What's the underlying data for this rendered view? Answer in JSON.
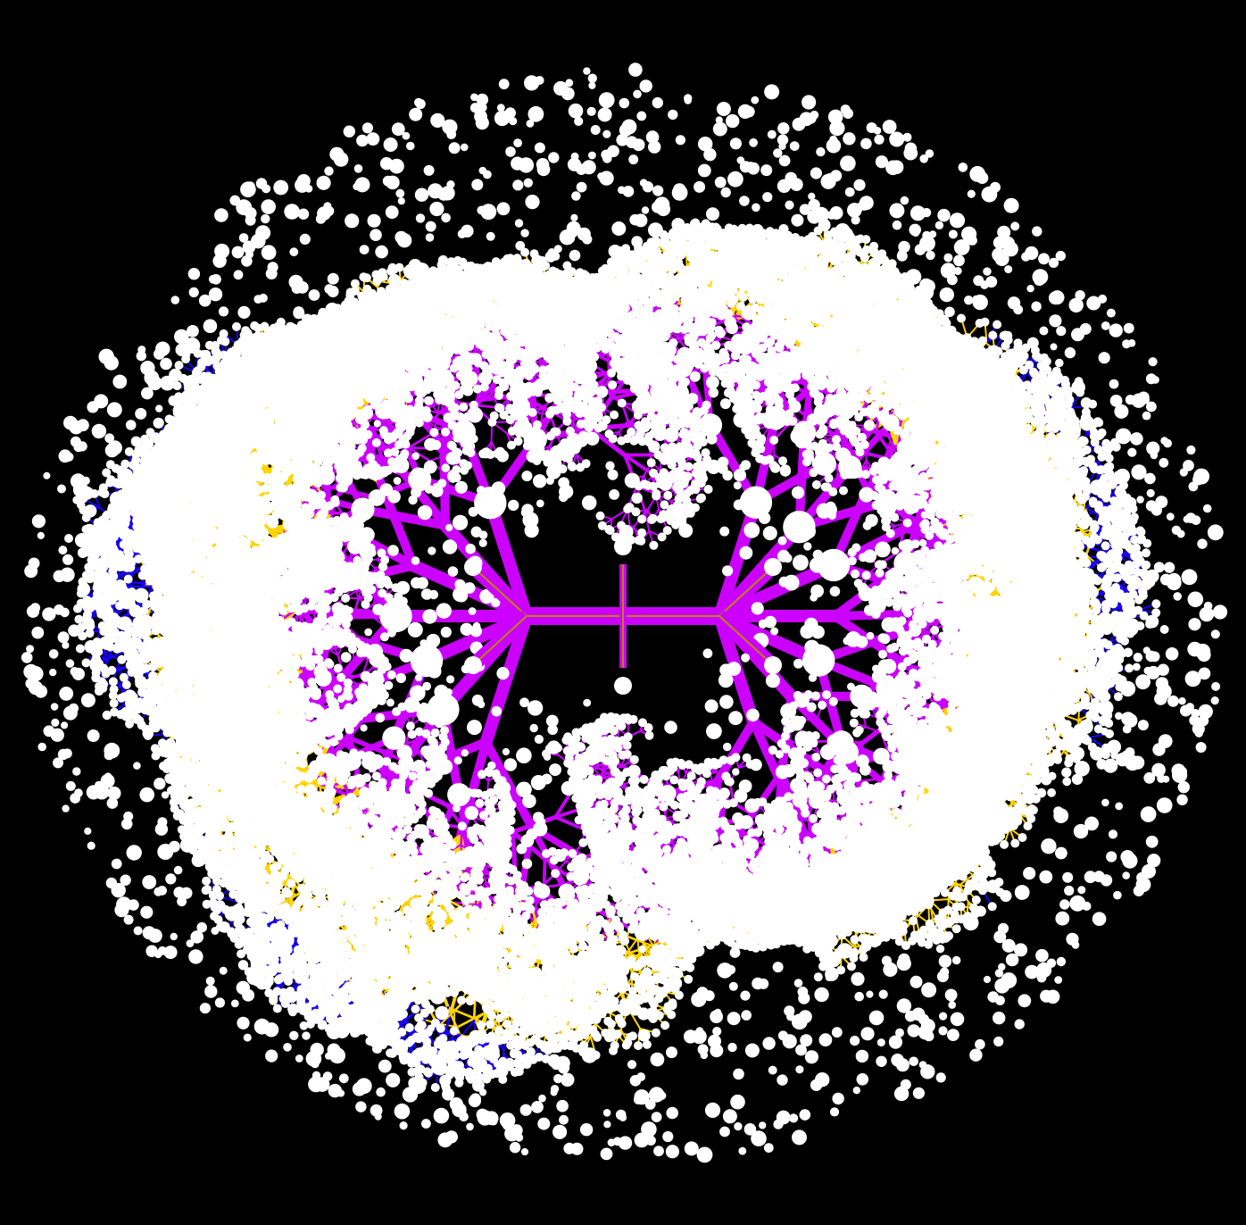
{
  "figure": {
    "description_visible_text": "",
    "background": "#000000",
    "node_color": "#ffffff",
    "palette": {
      "outer_ring": "#1a00ff",
      "middle_ring": "#ffd400",
      "inner_ring": "#cc00ff",
      "core_stroke": "#b8860b"
    },
    "structure": {
      "type": "fractal-branching-tree",
      "lobes": 2,
      "rings": [
        "inner_ring",
        "middle_ring",
        "outer_ring"
      ],
      "branching_factor": 3
    }
  }
}
